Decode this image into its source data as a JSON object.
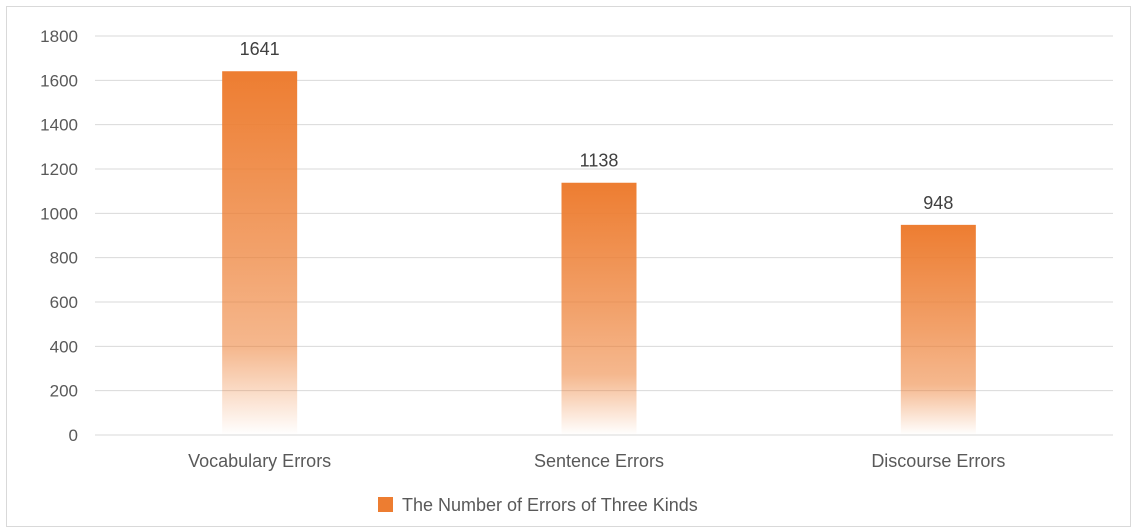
{
  "chart_data": {
    "type": "bar",
    "categories": [
      "Vocabulary Errors",
      "Sentence Errors",
      "Discourse Errors"
    ],
    "series": [
      {
        "name": "The Number of Errors of Three Kinds",
        "values": [
          1641,
          1138,
          948
        ]
      }
    ],
    "data_labels": [
      "1641",
      "1138",
      "948"
    ],
    "ylim": [
      0,
      1800
    ],
    "yticks": [
      0,
      200,
      400,
      600,
      800,
      1000,
      1200,
      1400,
      1600,
      1800
    ],
    "grid": true,
    "legend_position": "bottom",
    "colors": {
      "bar": "#ED7D31",
      "grid": "#d9d9d9",
      "text": "#595959"
    }
  }
}
